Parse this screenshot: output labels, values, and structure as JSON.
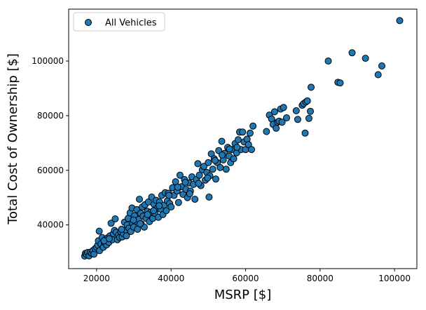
{
  "chart_data": {
    "type": "scatter",
    "title": "",
    "xlabel": "MSRP [$]",
    "ylabel": "Total Cost of Ownership [$]",
    "xlim": [
      12500,
      106000
    ],
    "ylim": [
      24000,
      119000
    ],
    "xticks": [
      20000,
      40000,
      60000,
      80000,
      100000
    ],
    "yticks": [
      40000,
      60000,
      80000,
      100000
    ],
    "grid": false,
    "legend_position": "upper-left",
    "colors": {
      "marker_fill": "#1f77b4",
      "marker_edge": "#000000"
    },
    "series": [
      {
        "name": "All Vehicles",
        "points": [
          [
            16800,
            28600
          ],
          [
            17000,
            29600
          ],
          [
            17300,
            29200
          ],
          [
            17600,
            29900
          ],
          [
            18000,
            28700
          ],
          [
            18300,
            30000
          ],
          [
            18700,
            29600
          ],
          [
            19000,
            30600
          ],
          [
            19300,
            29300
          ],
          [
            19600,
            31300
          ],
          [
            20000,
            31800
          ],
          [
            20300,
            32600
          ],
          [
            20500,
            34200
          ],
          [
            20700,
            37700
          ],
          [
            20800,
            30600
          ],
          [
            21200,
            33000
          ],
          [
            21500,
            35400
          ],
          [
            21800,
            31800
          ],
          [
            22100,
            33600
          ],
          [
            22400,
            34600
          ],
          [
            22700,
            32700
          ],
          [
            23000,
            35300
          ],
          [
            23300,
            33600
          ],
          [
            23600,
            36000
          ],
          [
            23900,
            40600
          ],
          [
            24200,
            34600
          ],
          [
            24500,
            36800
          ],
          [
            24800,
            38000
          ],
          [
            25000,
            42200
          ],
          [
            25300,
            37300
          ],
          [
            25600,
            34600
          ],
          [
            25900,
            36300
          ],
          [
            26200,
            35400
          ],
          [
            26500,
            37500
          ],
          [
            26900,
            35600
          ],
          [
            27200,
            36800
          ],
          [
            27500,
            41000
          ],
          [
            27800,
            38200
          ],
          [
            28000,
            36000
          ],
          [
            28200,
            40000
          ],
          [
            28500,
            42400
          ],
          [
            28700,
            38800
          ],
          [
            29000,
            44400
          ],
          [
            29200,
            37600
          ],
          [
            29500,
            46200
          ],
          [
            29700,
            40600
          ],
          [
            30000,
            39200
          ],
          [
            30200,
            43300
          ],
          [
            30500,
            41400
          ],
          [
            30800,
            45600
          ],
          [
            31000,
            38400
          ],
          [
            31300,
            42000
          ],
          [
            31500,
            49400
          ],
          [
            31800,
            44200
          ],
          [
            32000,
            40400
          ],
          [
            32300,
            46600
          ],
          [
            32500,
            43200
          ],
          [
            32800,
            39200
          ],
          [
            33000,
            47400
          ],
          [
            33300,
            42400
          ],
          [
            33600,
            45000
          ],
          [
            33900,
            48400
          ],
          [
            34200,
            41200
          ],
          [
            34500,
            44600
          ],
          [
            34800,
            50200
          ],
          [
            35100,
            42400
          ],
          [
            35400,
            47600
          ],
          [
            35700,
            44200
          ],
          [
            36000,
            49000
          ],
          [
            36300,
            46200
          ],
          [
            36600,
            42800
          ],
          [
            36900,
            48400
          ],
          [
            37200,
            45800
          ],
          [
            37500,
            50800
          ],
          [
            37800,
            43800
          ],
          [
            38100,
            47200
          ],
          [
            38400,
            51800
          ],
          [
            38700,
            45200
          ],
          [
            39000,
            48800
          ],
          [
            39300,
            51600
          ],
          [
            39600,
            47800
          ],
          [
            40000,
            46600
          ],
          [
            40400,
            53600
          ],
          [
            40800,
            50800
          ],
          [
            41200,
            55800
          ],
          [
            41600,
            52400
          ],
          [
            42000,
            48200
          ],
          [
            42400,
            58200
          ],
          [
            42800,
            54000
          ],
          [
            43200,
            51200
          ],
          [
            43600,
            56600
          ],
          [
            44000,
            53000
          ],
          [
            44400,
            50000
          ],
          [
            44800,
            55400
          ],
          [
            45200,
            52400
          ],
          [
            45600,
            57600
          ],
          [
            46000,
            54800
          ],
          [
            46400,
            49400
          ],
          [
            46800,
            56600
          ],
          [
            47200,
            62400
          ],
          [
            47600,
            58200
          ],
          [
            48000,
            54400
          ],
          [
            48400,
            60200
          ],
          [
            48800,
            61400
          ],
          [
            49200,
            56400
          ],
          [
            49600,
            59200
          ],
          [
            50000,
            62800
          ],
          [
            50400,
            58000
          ],
          [
            50800,
            66000
          ],
          [
            51200,
            60400
          ],
          [
            51600,
            64200
          ],
          [
            52000,
            56800
          ],
          [
            52400,
            62800
          ],
          [
            52800,
            67200
          ],
          [
            53200,
            61000
          ],
          [
            53600,
            70600
          ],
          [
            54000,
            63800
          ],
          [
            54400,
            66200
          ],
          [
            54800,
            60400
          ],
          [
            55200,
            68400
          ],
          [
            55600,
            65200
          ],
          [
            56000,
            62800
          ],
          [
            56400,
            67600
          ],
          [
            56800,
            64200
          ],
          [
            57200,
            69800
          ],
          [
            57600,
            66400
          ],
          [
            58000,
            71200
          ],
          [
            58400,
            74000
          ],
          [
            58800,
            67600
          ],
          [
            59200,
            74000
          ],
          [
            59600,
            70400
          ],
          [
            60000,
            67600
          ],
          [
            60400,
            71400
          ],
          [
            60800,
            69400
          ],
          [
            61200,
            73600
          ],
          [
            61600,
            67600
          ],
          [
            62000,
            76200
          ],
          [
            50200,
            50200
          ],
          [
            65600,
            74200
          ],
          [
            66400,
            80200
          ],
          [
            67000,
            78800
          ],
          [
            67400,
            76800
          ],
          [
            67800,
            81400
          ],
          [
            68200,
            75400
          ],
          [
            68600,
            77600
          ],
          [
            69000,
            78000
          ],
          [
            69400,
            82400
          ],
          [
            69800,
            77600
          ],
          [
            70200,
            83000
          ],
          [
            71000,
            79200
          ],
          [
            73600,
            81800
          ],
          [
            74000,
            78600
          ],
          [
            75200,
            83800
          ],
          [
            75600,
            84400
          ],
          [
            76000,
            73600
          ],
          [
            76200,
            85000
          ],
          [
            76600,
            85400
          ],
          [
            77000,
            79000
          ],
          [
            77400,
            81600
          ],
          [
            77600,
            90400
          ],
          [
            82200,
            100000
          ],
          [
            84800,
            92200
          ],
          [
            85400,
            92000
          ],
          [
            88600,
            103000
          ],
          [
            92200,
            101000
          ],
          [
            95600,
            95000
          ],
          [
            96600,
            98200
          ],
          [
            101400,
            114800
          ],
          [
            22000,
            34200
          ],
          [
            23400,
            35000
          ],
          [
            26700,
            38400
          ],
          [
            29900,
            41800
          ],
          [
            31700,
            40400
          ],
          [
            33700,
            43800
          ],
          [
            35300,
            45200
          ],
          [
            36800,
            47000
          ],
          [
            39400,
            50800
          ],
          [
            41800,
            53800
          ],
          [
            43800,
            55600
          ],
          [
            45000,
            51400
          ],
          [
            47400,
            55200
          ],
          [
            49800,
            57200
          ],
          [
            51800,
            63600
          ],
          [
            53700,
            65600
          ],
          [
            55700,
            67800
          ],
          [
            57700,
            68400
          ]
        ]
      }
    ]
  }
}
